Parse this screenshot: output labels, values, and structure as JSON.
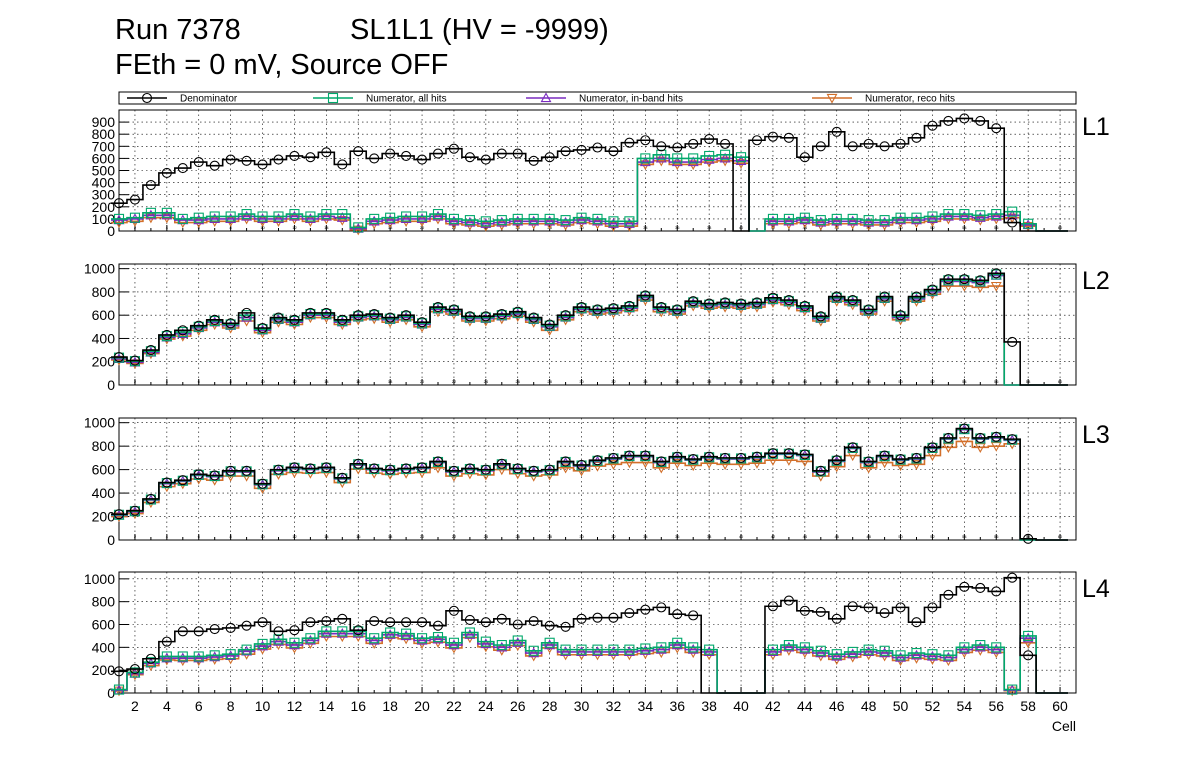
{
  "header": {
    "run_label": "Run 7378",
    "sl_label": "SL1L1 (HV = -9999)",
    "condition_label": "FEth = 0 mV, Source OFF"
  },
  "chart_data": {
    "type": "step",
    "xlabel": "Cell",
    "x_range": [
      1,
      61
    ],
    "x_ticks": [
      2,
      4,
      6,
      8,
      10,
      12,
      14,
      16,
      18,
      20,
      22,
      24,
      26,
      28,
      30,
      32,
      34,
      36,
      38,
      40,
      42,
      44,
      46,
      48,
      50,
      52,
      54,
      56,
      58,
      60
    ],
    "legend": {
      "placement": "top",
      "entries": [
        {
          "name": "Denominator",
          "color": "#000000",
          "marker": "circle"
        },
        {
          "name": "Numerator, all hits",
          "color": "#00a86b",
          "marker": "square"
        },
        {
          "name": "Numerator, in-band hits",
          "color": "#7a2bbf",
          "marker": "triangle-up"
        },
        {
          "name": "Numerator, reco hits",
          "color": "#d26f2a",
          "marker": "triangle-down"
        }
      ]
    },
    "cells": [
      1,
      2,
      3,
      4,
      5,
      6,
      7,
      8,
      9,
      10,
      11,
      12,
      13,
      14,
      15,
      16,
      17,
      18,
      19,
      20,
      21,
      22,
      23,
      24,
      25,
      26,
      27,
      28,
      29,
      30,
      31,
      32,
      33,
      34,
      35,
      36,
      37,
      38,
      39,
      40,
      41,
      42,
      43,
      44,
      45,
      46,
      47,
      48,
      49,
      50,
      51,
      52,
      53,
      54,
      55,
      56,
      57,
      58,
      59,
      60
    ],
    "panels": [
      {
        "name": "L1",
        "ylim": [
          0,
          1000
        ],
        "y_ticks": [
          0,
          100,
          200,
          300,
          400,
          500,
          600,
          700,
          800,
          900
        ],
        "denominator": [
          230,
          260,
          380,
          480,
          520,
          570,
          540,
          590,
          580,
          550,
          590,
          620,
          610,
          650,
          550,
          660,
          600,
          640,
          620,
          590,
          640,
          680,
          610,
          590,
          640,
          640,
          580,
          610,
          660,
          670,
          690,
          660,
          730,
          750,
          700,
          690,
          720,
          760,
          720,
          0,
          750,
          780,
          770,
          610,
          700,
          820,
          700,
          720,
          700,
          720,
          770,
          870,
          910,
          930,
          910,
          850,
          70,
          0,
          0,
          0
        ],
        "all_hits": [
          100,
          110,
          150,
          150,
          100,
          110,
          120,
          120,
          140,
          120,
          120,
          140,
          120,
          140,
          140,
          30,
          100,
          110,
          120,
          120,
          140,
          100,
          90,
          80,
          90,
          100,
          100,
          100,
          90,
          110,
          100,
          80,
          80,
          600,
          630,
          600,
          600,
          620,
          630,
          610,
          0,
          100,
          100,
          110,
          90,
          100,
          100,
          90,
          90,
          110,
          110,
          120,
          140,
          140,
          130,
          140,
          160,
          60,
          0,
          0
        ],
        "in_band": [
          90,
          100,
          130,
          130,
          90,
          90,
          100,
          100,
          120,
          100,
          100,
          120,
          100,
          120,
          110,
          20,
          80,
          90,
          100,
          100,
          120,
          80,
          70,
          60,
          70,
          80,
          80,
          80,
          70,
          90,
          80,
          60,
          60,
          570,
          600,
          570,
          570,
          590,
          600,
          580,
          0,
          80,
          80,
          90,
          70,
          80,
          80,
          70,
          70,
          90,
          90,
          100,
          120,
          120,
          110,
          120,
          130,
          50,
          0,
          0
        ],
        "reco": [
          70,
          80,
          110,
          110,
          70,
          70,
          80,
          80,
          100,
          80,
          80,
          100,
          80,
          100,
          90,
          10,
          60,
          70,
          80,
          80,
          100,
          60,
          50,
          40,
          50,
          60,
          60,
          60,
          50,
          70,
          60,
          40,
          40,
          550,
          580,
          550,
          550,
          570,
          580,
          560,
          0,
          60,
          60,
          70,
          50,
          60,
          60,
          50,
          50,
          70,
          70,
          80,
          100,
          100,
          90,
          100,
          110,
          40,
          0,
          0
        ]
      },
      {
        "name": "L2",
        "ylim": [
          0,
          1040
        ],
        "y_ticks": [
          0,
          200,
          400,
          600,
          800,
          1000
        ],
        "denominator": [
          240,
          210,
          300,
          430,
          470,
          510,
          560,
          530,
          620,
          490,
          580,
          560,
          620,
          620,
          560,
          600,
          610,
          580,
          600,
          540,
          670,
          650,
          590,
          590,
          610,
          630,
          580,
          520,
          600,
          670,
          650,
          660,
          680,
          770,
          670,
          650,
          720,
          700,
          710,
          700,
          710,
          750,
          730,
          680,
          590,
          760,
          730,
          650,
          760,
          600,
          760,
          820,
          910,
          910,
          900,
          960,
          370,
          0,
          0,
          0
        ],
        "all_hits": [
          235,
          205,
          290,
          420,
          455,
          500,
          550,
          520,
          600,
          480,
          570,
          550,
          610,
          610,
          550,
          590,
          600,
          570,
          590,
          530,
          660,
          640,
          580,
          580,
          600,
          620,
          570,
          510,
          590,
          660,
          640,
          650,
          670,
          760,
          660,
          640,
          710,
          690,
          700,
          690,
          700,
          740,
          720,
          670,
          580,
          750,
          720,
          640,
          750,
          590,
          750,
          810,
          900,
          900,
          890,
          950,
          0,
          0,
          0,
          0
        ],
        "in_band": [
          225,
          195,
          280,
          410,
          440,
          490,
          540,
          510,
          580,
          470,
          560,
          540,
          600,
          600,
          540,
          580,
          590,
          560,
          580,
          520,
          650,
          630,
          570,
          570,
          590,
          610,
          560,
          500,
          580,
          650,
          630,
          640,
          660,
          750,
          650,
          630,
          700,
          680,
          690,
          680,
          690,
          730,
          710,
          660,
          570,
          740,
          710,
          630,
          740,
          580,
          740,
          800,
          890,
          890,
          880,
          940,
          0,
          0,
          0,
          0
        ],
        "reco": [
          215,
          185,
          270,
          395,
          420,
          470,
          520,
          490,
          550,
          450,
          540,
          520,
          580,
          580,
          520,
          560,
          570,
          540,
          560,
          500,
          630,
          610,
          550,
          550,
          570,
          590,
          540,
          470,
          560,
          630,
          610,
          620,
          640,
          730,
          630,
          610,
          680,
          660,
          670,
          660,
          670,
          710,
          690,
          640,
          550,
          720,
          690,
          610,
          720,
          560,
          720,
          780,
          850,
          850,
          840,
          850,
          0,
          0,
          0,
          0
        ]
      },
      {
        "name": "L3",
        "ylim": [
          0,
          1040
        ],
        "y_ticks": [
          0,
          200,
          400,
          600,
          800,
          1000
        ],
        "denominator": [
          220,
          250,
          350,
          490,
          510,
          560,
          550,
          590,
          590,
          480,
          600,
          620,
          610,
          620,
          530,
          650,
          610,
          600,
          610,
          620,
          670,
          590,
          610,
          600,
          650,
          610,
          590,
          600,
          670,
          640,
          680,
          700,
          720,
          720,
          670,
          710,
          690,
          710,
          700,
          700,
          710,
          740,
          740,
          730,
          590,
          680,
          790,
          670,
          720,
          690,
          700,
          790,
          870,
          950,
          870,
          880,
          860,
          10,
          0,
          0
        ],
        "all_hits": [
          215,
          245,
          345,
          485,
          505,
          555,
          545,
          585,
          585,
          475,
          595,
          615,
          605,
          615,
          525,
          645,
          605,
          595,
          605,
          615,
          665,
          585,
          605,
          595,
          645,
          605,
          585,
          595,
          665,
          635,
          675,
          695,
          715,
          715,
          665,
          705,
          685,
          705,
          695,
          695,
          705,
          735,
          735,
          725,
          585,
          675,
          785,
          665,
          715,
          685,
          695,
          785,
          865,
          945,
          865,
          875,
          855,
          0,
          0,
          0
        ],
        "in_band": [
          210,
          240,
          340,
          480,
          500,
          550,
          540,
          580,
          580,
          470,
          590,
          610,
          600,
          610,
          520,
          640,
          600,
          590,
          600,
          610,
          660,
          580,
          600,
          590,
          640,
          600,
          580,
          590,
          660,
          630,
          670,
          690,
          710,
          710,
          660,
          700,
          680,
          700,
          690,
          690,
          700,
          730,
          730,
          720,
          580,
          670,
          780,
          660,
          710,
          680,
          690,
          780,
          860,
          940,
          860,
          870,
          850,
          0,
          0,
          0
        ],
        "reco": [
          200,
          225,
          320,
          455,
          480,
          520,
          510,
          545,
          545,
          440,
          560,
          575,
          570,
          575,
          490,
          605,
          570,
          560,
          570,
          575,
          615,
          545,
          565,
          555,
          600,
          565,
          545,
          555,
          615,
          590,
          630,
          645,
          660,
          660,
          615,
          655,
          635,
          655,
          645,
          645,
          655,
          680,
          680,
          670,
          545,
          625,
          720,
          615,
          660,
          635,
          645,
          720,
          790,
          840,
          790,
          800,
          820,
          0,
          0,
          0
        ],
        "reco_markers_only": [
          57,
          58
        ]
      },
      {
        "name": "L4",
        "ylim": [
          0,
          1060
        ],
        "y_ticks": [
          0,
          200,
          400,
          600,
          800,
          1000
        ],
        "denominator": [
          190,
          210,
          300,
          450,
          540,
          540,
          560,
          570,
          590,
          620,
          540,
          550,
          620,
          630,
          650,
          550,
          630,
          620,
          620,
          620,
          590,
          720,
          640,
          620,
          650,
          600,
          630,
          590,
          580,
          650,
          660,
          660,
          700,
          730,
          750,
          690,
          680,
          0,
          0,
          0,
          0,
          760,
          810,
          720,
          710,
          650,
          760,
          750,
          700,
          750,
          620,
          750,
          860,
          930,
          920,
          890,
          1010,
          330,
          0,
          0
        ],
        "all_hits": [
          30,
          180,
          270,
          320,
          320,
          320,
          330,
          340,
          380,
          430,
          470,
          440,
          480,
          540,
          540,
          540,
          480,
          530,
          520,
          480,
          490,
          440,
          530,
          450,
          420,
          460,
          370,
          440,
          380,
          380,
          380,
          380,
          380,
          390,
          400,
          440,
          400,
          380,
          0,
          0,
          0,
          380,
          420,
          400,
          370,
          340,
          360,
          380,
          370,
          330,
          350,
          340,
          330,
          400,
          420,
          400,
          30,
          500,
          0,
          0
        ],
        "in_band": [
          25,
          170,
          260,
          305,
          305,
          305,
          315,
          325,
          365,
          410,
          450,
          420,
          460,
          520,
          520,
          520,
          460,
          510,
          500,
          460,
          470,
          420,
          510,
          430,
          400,
          440,
          350,
          420,
          360,
          360,
          360,
          360,
          360,
          370,
          380,
          420,
          380,
          360,
          0,
          0,
          0,
          360,
          400,
          380,
          350,
          320,
          340,
          360,
          350,
          310,
          330,
          320,
          310,
          380,
          400,
          380,
          25,
          480,
          0,
          0
        ],
        "reco": [
          20,
          160,
          240,
          290,
          285,
          285,
          295,
          300,
          340,
          385,
          425,
          395,
          435,
          495,
          495,
          495,
          435,
          485,
          475,
          435,
          445,
          395,
          485,
          405,
          375,
          415,
          325,
          395,
          335,
          335,
          335,
          335,
          335,
          345,
          355,
          395,
          355,
          335,
          0,
          0,
          0,
          335,
          375,
          355,
          325,
          295,
          315,
          335,
          325,
          285,
          305,
          295,
          285,
          355,
          375,
          355,
          20,
          440,
          0,
          0
        ]
      }
    ]
  }
}
